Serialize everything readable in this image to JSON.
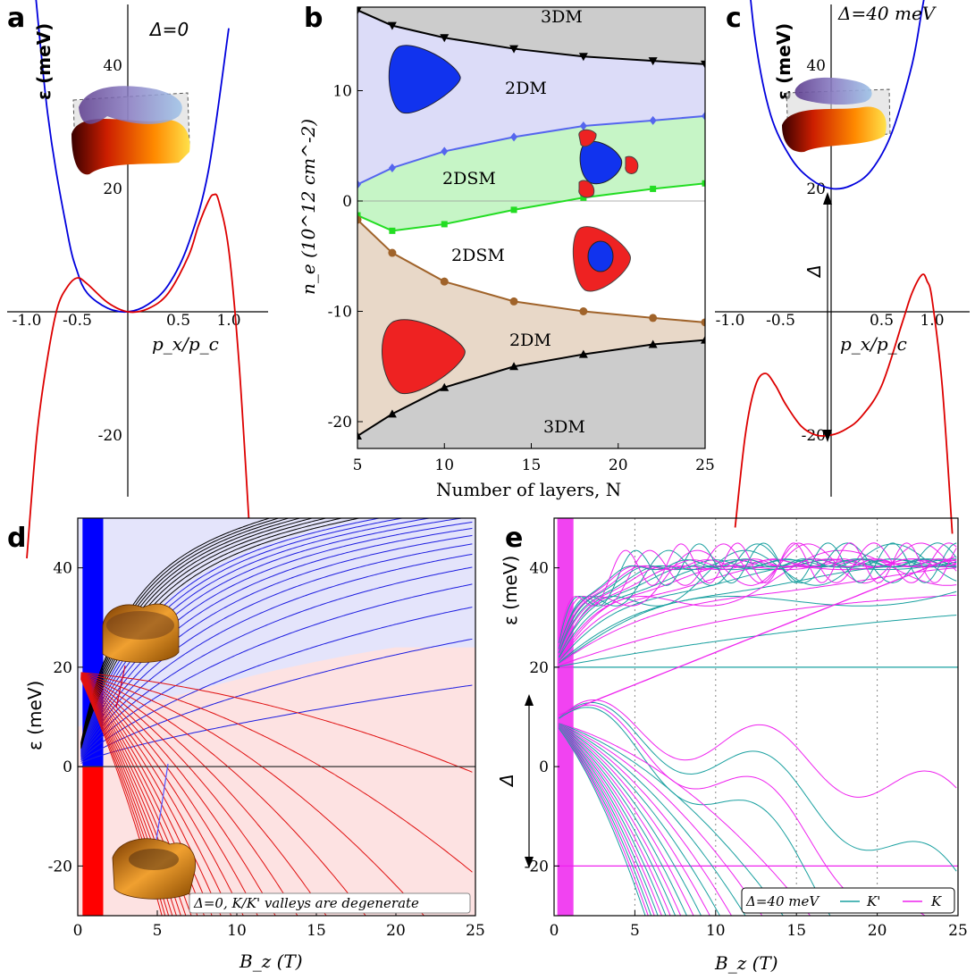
{
  "chart_data": [
    {
      "panel": "a",
      "type": "line",
      "annotation": "Δ=0",
      "xlabel": "p_x/p_c",
      "ylabel": "ε (meV)",
      "x_ticks": [
        "-1.0",
        "-0.5",
        "0.5",
        "1.0"
      ],
      "y_ticks": [
        "40",
        "20",
        "-20"
      ],
      "xlim": [
        -1.2,
        1.2
      ],
      "ylim": [
        -36,
        60
      ],
      "series": [
        {
          "color": "#0000dd",
          "x": [
            -1.0,
            -0.8,
            -0.6,
            -0.5,
            -0.4,
            -0.2,
            0,
            0.2,
            0.4,
            0.6,
            0.8,
            1.0
          ],
          "values": [
            67,
            33,
            13,
            6.5,
            3,
            0.6,
            0,
            1.2,
            4.3,
            11,
            23,
            46
          ]
        },
        {
          "color": "#dd0000",
          "x": [
            -1.0,
            -0.9,
            -0.8,
            -0.7,
            -0.6,
            -0.5,
            -0.4,
            -0.2,
            0,
            0.2,
            0.4,
            0.6,
            0.7,
            0.8,
            0.85,
            0.9,
            1.0,
            1.1,
            1.2
          ],
          "values": [
            -40,
            -20,
            -8,
            0.5,
            4,
            5.5,
            4.5,
            1.5,
            0,
            0.5,
            3,
            9,
            14,
            18,
            19,
            18,
            10,
            -8,
            -34
          ]
        }
      ]
    },
    {
      "panel": "b",
      "type": "area",
      "xlabel": "Number of layers, N",
      "ylabel": "n_e (10^12 cm^-2)",
      "x_ticks": [
        "5",
        "10",
        "15",
        "20",
        "25"
      ],
      "y_ticks": [
        "10",
        "0",
        "-10",
        "-20"
      ],
      "xlim": [
        5,
        25
      ],
      "ylim": [
        -22,
        18
      ],
      "region_labels": [
        "3DM",
        "2DM",
        "2DSM",
        "2DSM",
        "2DM",
        "3DM"
      ],
      "x": [
        5,
        7,
        10,
        14,
        18,
        22,
        25
      ],
      "series": [
        {
          "color": "#000000",
          "marker": "down-triangle",
          "values": [
            17.3,
            15.9,
            14.8,
            13.8,
            13.1,
            12.7,
            12.4
          ]
        },
        {
          "color": "#5566ee",
          "marker": "diamond",
          "values": [
            1.5,
            3.0,
            4.5,
            5.8,
            6.8,
            7.3,
            7.7
          ]
        },
        {
          "color": "#22dd22",
          "marker": "square",
          "values": [
            -1.3,
            -2.7,
            -2.1,
            -0.8,
            0.3,
            1.1,
            1.6
          ]
        },
        {
          "color": "#a0632a",
          "marker": "circle",
          "values": [
            -1.7,
            -4.7,
            -7.3,
            -9.1,
            -10.0,
            -10.6,
            -11.0
          ]
        },
        {
          "color": "#000000",
          "marker": "up-triangle",
          "values": [
            -21.3,
            -19.3,
            -16.9,
            -15.0,
            -13.9,
            -13.0,
            -12.6
          ]
        }
      ]
    },
    {
      "panel": "c",
      "type": "line",
      "annotation": "Δ=40 meV",
      "gap_label": "Δ",
      "xlabel": "p_x/p_c",
      "ylabel": "ε (meV)",
      "x_ticks": [
        "-1.0",
        "-0.5",
        "0.5",
        "1.0"
      ],
      "y_ticks": [
        "40",
        "20",
        "-20"
      ],
      "xlim": [
        -1.2,
        1.2
      ],
      "ylim": [
        -36,
        60
      ],
      "series": [
        {
          "color": "#0000dd",
          "x": [
            -0.85,
            -0.75,
            -0.6,
            -0.4,
            -0.2,
            0,
            0.2,
            0.4,
            0.6,
            0.8,
            0.9,
            1.0,
            1.05
          ],
          "values": [
            60,
            44,
            32,
            25,
            21.5,
            20,
            20.5,
            23,
            29,
            40,
            49,
            58,
            62
          ]
        },
        {
          "color": "#dd0000",
          "x": [
            -0.95,
            -0.85,
            -0.75,
            -0.65,
            -0.55,
            -0.45,
            -0.3,
            -0.15,
            0,
            0.15,
            0.3,
            0.5,
            0.7,
            0.8,
            0.9,
            0.95,
            1.0,
            1.1,
            1.2
          ],
          "values": [
            -35,
            -20,
            -12,
            -10,
            -12,
            -15,
            -18.5,
            -20,
            -20,
            -19,
            -17,
            -12,
            -2,
            3,
            6,
            5,
            2,
            -12,
            -36
          ]
        }
      ]
    },
    {
      "panel": "d",
      "type": "line",
      "xlabel": "B_z (T)",
      "ylabel": "ε (meV)",
      "x_ticks": [
        "0",
        "5",
        "10",
        "15",
        "20",
        "25"
      ],
      "y_ticks": [
        "40",
        "20",
        "0",
        "-20"
      ],
      "xlim": [
        0,
        25
      ],
      "ylim": [
        -30,
        50
      ],
      "legend": "Δ=0, K/K' valleys are degenerate"
    },
    {
      "panel": "e",
      "type": "line",
      "xlabel": "B_z (T)",
      "ylabel": "ε (meV)",
      "gap_label": "Δ",
      "x_ticks": [
        "0",
        "5",
        "10",
        "15",
        "20",
        "25"
      ],
      "y_ticks": [
        "40",
        "20",
        "0",
        "-20"
      ],
      "xlim": [
        0,
        25
      ],
      "ylim": [
        -30,
        50
      ],
      "legend_title": "Δ=40 meV",
      "legend_entries": [
        "K'",
        "K"
      ]
    }
  ]
}
